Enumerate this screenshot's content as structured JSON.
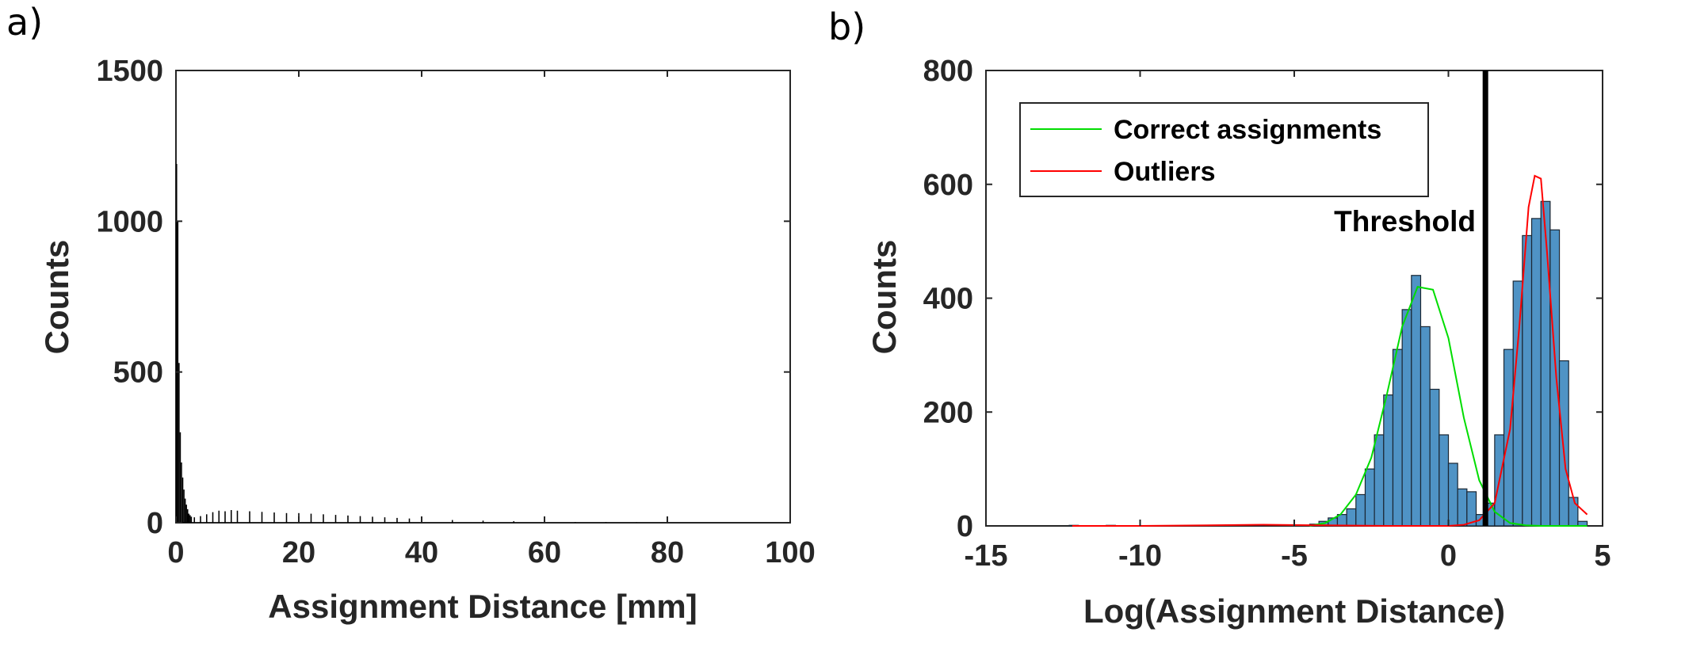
{
  "panels": {
    "a": "a)",
    "b": "b)"
  },
  "chart_data": [
    {
      "type": "bar",
      "panel": "a)",
      "xlabel": "Assignment Distance [mm]",
      "ylabel": "Counts",
      "xlim": [
        0,
        100
      ],
      "ylim": [
        0,
        1500
      ],
      "xticks": [
        0,
        20,
        40,
        60,
        80,
        100
      ],
      "yticks": [
        0,
        500,
        1000,
        1500
      ],
      "bar_color": "#000000",
      "bin_width": 0.2,
      "x": [
        0.1,
        0.3,
        0.5,
        0.7,
        0.9,
        1.1,
        1.3,
        1.5,
        1.7,
        1.9,
        2.1,
        2.3,
        2.5,
        3,
        4,
        5,
        6,
        7,
        8,
        9,
        10,
        12,
        14,
        16,
        18,
        20,
        22,
        24,
        26,
        28,
        30,
        32,
        34,
        36,
        38,
        40,
        45,
        50,
        55,
        60,
        65,
        70,
        75,
        80
      ],
      "values": [
        1190,
        1000,
        530,
        300,
        200,
        150,
        110,
        80,
        60,
        45,
        30,
        25,
        20,
        18,
        22,
        28,
        35,
        40,
        38,
        42,
        40,
        38,
        36,
        34,
        32,
        32,
        30,
        28,
        26,
        24,
        22,
        20,
        18,
        16,
        14,
        12,
        9,
        7,
        5,
        3,
        2,
        2,
        1,
        1
      ]
    },
    {
      "type": "bar",
      "panel": "b)",
      "xlabel": "Log(Assignment Distance)",
      "ylabel": "Counts",
      "xlim": [
        -15,
        5
      ],
      "ylim": [
        0,
        800
      ],
      "xticks": [
        -15,
        -10,
        -5,
        0,
        5
      ],
      "yticks": [
        0,
        200,
        400,
        600,
        800
      ],
      "bar_color": "#4f93c5",
      "bar_edge": "#1b2733",
      "bin_width": 0.3,
      "x": [
        -12.15,
        -10.95,
        -6.15,
        -4.35,
        -4.05,
        -3.75,
        -3.45,
        -3.15,
        -2.85,
        -2.55,
        -2.25,
        -1.95,
        -1.65,
        -1.35,
        -1.05,
        -0.75,
        -0.45,
        -0.15,
        0.15,
        0.45,
        0.75,
        1.05,
        1.35,
        1.65,
        1.95,
        2.25,
        2.55,
        2.85,
        3.15,
        3.45,
        3.75,
        4.05,
        4.35
      ],
      "values": [
        1,
        1,
        2,
        3,
        8,
        14,
        20,
        30,
        55,
        100,
        160,
        230,
        310,
        380,
        440,
        350,
        240,
        160,
        110,
        65,
        60,
        20,
        40,
        160,
        310,
        430,
        510,
        540,
        570,
        520,
        290,
        50,
        8
      ],
      "series": [
        {
          "name": "Correct assignments",
          "color": "#00dd00",
          "x": [
            -4.5,
            -4,
            -3.5,
            -3,
            -2.5,
            -2,
            -1.5,
            -1,
            -0.5,
            0,
            0.5,
            1,
            1.5,
            2,
            2.5,
            3,
            3.5,
            4,
            4.5
          ],
          "values": [
            0,
            5,
            20,
            55,
            120,
            230,
            350,
            420,
            415,
            330,
            190,
            80,
            25,
            5,
            1,
            0,
            0,
            0,
            0
          ]
        },
        {
          "name": "Outliers",
          "color": "#ff0000",
          "x": [
            -12.2,
            -10,
            -6,
            -4,
            -2,
            0,
            0.5,
            1,
            1.5,
            2,
            2.3,
            2.6,
            2.8,
            3.0,
            3.2,
            3.5,
            3.8,
            4.1,
            4.5
          ],
          "values": [
            0,
            0,
            2,
            1,
            0,
            0,
            2,
            10,
            40,
            170,
            350,
            560,
            615,
            610,
            480,
            260,
            100,
            40,
            20
          ]
        }
      ],
      "threshold": {
        "label": "Threshold",
        "x": 1.2
      },
      "legend": {
        "position": "top-left"
      }
    }
  ]
}
